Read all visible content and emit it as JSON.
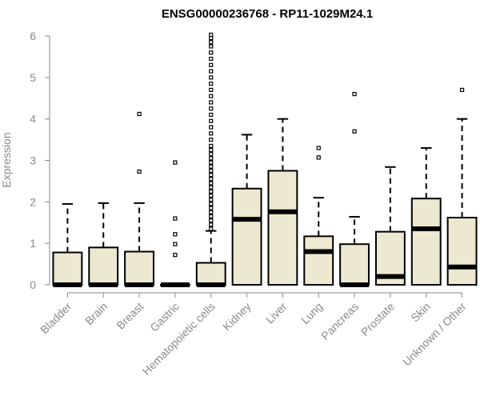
{
  "chart_data": {
    "type": "boxplot",
    "title": "ENSG00000236768 - RP11-1029M24.1",
    "ylabel": "Expression",
    "xlabel": "",
    "ylim": [
      0,
      6
    ],
    "yticks": [
      0,
      1,
      2,
      3,
      4,
      5,
      6
    ],
    "box_fill": "#ede8d0",
    "categories": [
      "Bladder",
      "Brain",
      "Breast",
      "Gastric",
      "Hematopoietic cells",
      "Kidney",
      "Liver",
      "Lung",
      "Pancreas",
      "Prostate",
      "Skin",
      "Unknown / Other"
    ],
    "boxes": [
      {
        "min": 0,
        "q1": 0,
        "median": 0,
        "q3": 0.78,
        "max": 1.95,
        "outliers": []
      },
      {
        "min": 0,
        "q1": 0,
        "median": 0,
        "q3": 0.9,
        "max": 1.97,
        "outliers": []
      },
      {
        "min": 0,
        "q1": 0,
        "median": 0,
        "q3": 0.8,
        "max": 1.97,
        "outliers": [
          2.73,
          4.12
        ]
      },
      {
        "min": 0,
        "q1": 0,
        "median": 0,
        "q3": 0,
        "max": 0,
        "outliers": [
          0.72,
          0.98,
          1.22,
          1.6,
          2.95
        ]
      },
      {
        "min": 0,
        "q1": 0,
        "median": 0,
        "q3": 0.53,
        "max": 1.3,
        "outliers": [
          1.35,
          1.45,
          1.55,
          1.65,
          1.75,
          1.85,
          1.95,
          2.05,
          2.15,
          2.25,
          2.35,
          2.45,
          2.55,
          2.65,
          2.75,
          2.85,
          2.95,
          3.05,
          3.15,
          3.25,
          3.35,
          3.5,
          3.65,
          3.8,
          3.95,
          4.1,
          4.25,
          4.4,
          4.55,
          4.7,
          4.85,
          5.0,
          5.15,
          5.3,
          5.45,
          5.6,
          5.75,
          5.85,
          5.95,
          6.03
        ]
      },
      {
        "min": 0,
        "q1": 0,
        "median": 1.58,
        "q3": 2.32,
        "max": 3.62,
        "outliers": []
      },
      {
        "min": 0,
        "q1": 0,
        "median": 1.76,
        "q3": 2.75,
        "max": 4.0,
        "outliers": []
      },
      {
        "min": 0,
        "q1": 0,
        "median": 0.8,
        "q3": 1.17,
        "max": 2.1,
        "outliers": [
          3.07,
          3.3
        ]
      },
      {
        "min": 0,
        "q1": 0,
        "median": 0,
        "q3": 0.98,
        "max": 1.64,
        "outliers": [
          3.7,
          4.6
        ]
      },
      {
        "min": 0,
        "q1": 0,
        "median": 0.2,
        "q3": 1.28,
        "max": 2.84,
        "outliers": []
      },
      {
        "min": 0,
        "q1": 0,
        "median": 1.35,
        "q3": 2.08,
        "max": 3.3,
        "outliers": []
      },
      {
        "min": 0,
        "q1": 0,
        "median": 0.43,
        "q3": 1.62,
        "max": 4.0,
        "outliers": [
          4.7
        ]
      }
    ]
  }
}
